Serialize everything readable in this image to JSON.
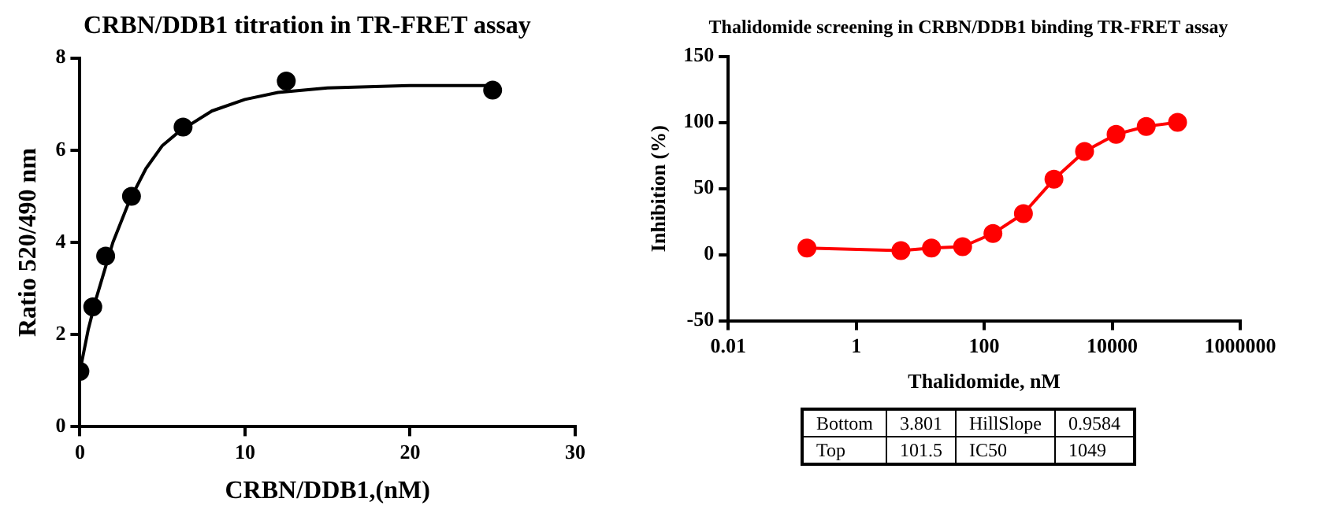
{
  "chart_data": [
    {
      "type": "scatter",
      "title": "CRBN/DDB1 titration in TR-FRET assay",
      "xlabel": "CRBN/DDB1,(nM)",
      "ylabel": "Ratio 520/490 nm",
      "xlim": [
        0,
        30
      ],
      "xticks": [
        0,
        10,
        20,
        30
      ],
      "ylim": [
        0,
        8
      ],
      "yticks": [
        0,
        2,
        4,
        6,
        8
      ],
      "grid": false,
      "legend": false,
      "marker": "circle",
      "series": [
        {
          "type": "scatter",
          "color": "#000000",
          "x": [
            0,
            0.78,
            1.56,
            3.125,
            6.25,
            12.5,
            25
          ],
          "values": [
            1.2,
            2.6,
            3.7,
            5.0,
            6.5,
            7.5,
            7.3
          ]
        },
        {
          "type": "line",
          "color": "#000000",
          "marker": "none",
          "x": [
            0,
            0.5,
            1,
            1.5,
            2,
            3,
            4,
            5,
            6,
            8,
            10,
            12,
            15,
            20,
            25
          ],
          "values": [
            1.2,
            2.1,
            2.8,
            3.4,
            4.0,
            4.9,
            5.6,
            6.1,
            6.4,
            6.85,
            7.1,
            7.25,
            7.35,
            7.4,
            7.4
          ]
        }
      ]
    },
    {
      "type": "line",
      "title": "Thalidomide screening in CRBN/DDB1 binding TR-FRET assay",
      "xlabel": "Thalidomide, nM",
      "ylabel": "Inhibition (%)",
      "log": "x",
      "xlim": [
        0.01,
        1000000
      ],
      "xticks": [
        0.01,
        1,
        100,
        10000,
        1000000
      ],
      "ylim": [
        -50,
        150
      ],
      "yticks": [
        -50,
        0,
        50,
        100,
        150
      ],
      "grid": false,
      "legend": false,
      "marker": "circle",
      "color": "#ff0000",
      "x": [
        0.17,
        5,
        15,
        46,
        137,
        410,
        1230,
        3700,
        11500,
        34000,
        105000
      ],
      "values": [
        5,
        3,
        5,
        6,
        16,
        31,
        57,
        78,
        91,
        97,
        100
      ],
      "annotations": [
        "Bottom",
        "3.801",
        "HillSlope",
        "0.9584",
        "Top",
        "101.5",
        "IC50",
        "1049"
      ]
    }
  ]
}
